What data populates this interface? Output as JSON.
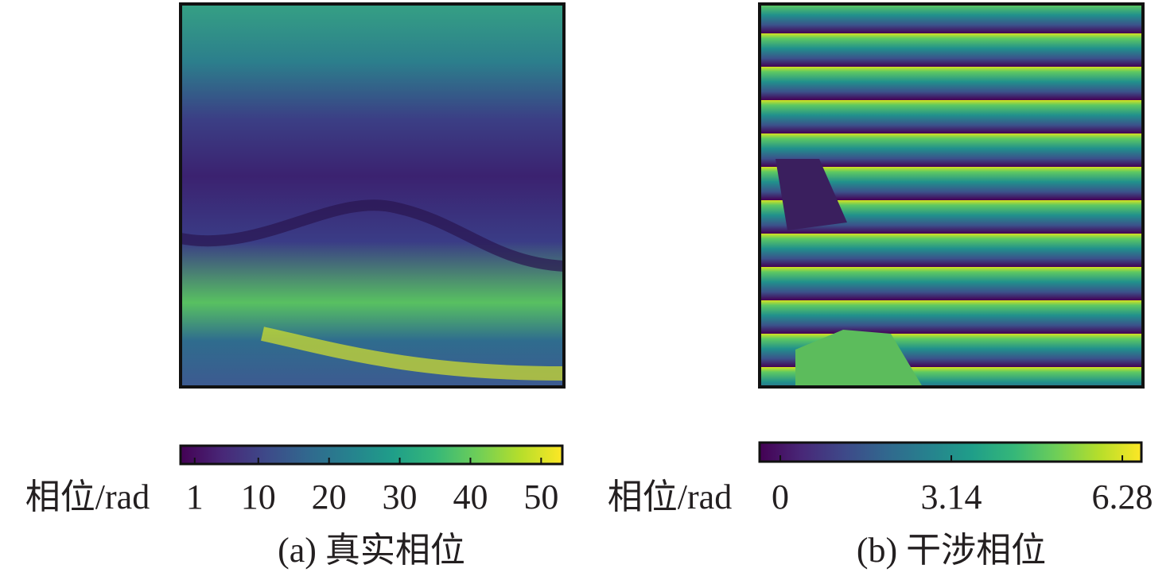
{
  "chart_data": [
    {
      "type": "heatmap",
      "caption": "(a) 真实相位",
      "colorbar_label": "相位/rad",
      "colormap": "viridis",
      "clim": [
        -1,
        53
      ],
      "cticks": [
        1,
        10,
        20,
        30,
        40,
        50
      ]
    },
    {
      "type": "heatmap",
      "caption": "(b) 干涉相位",
      "colorbar_label": "相位/rad",
      "colormap": "viridis",
      "clim": [
        -0.38,
        6.63
      ],
      "cticks": [
        0,
        3.14,
        6.28
      ]
    }
  ]
}
